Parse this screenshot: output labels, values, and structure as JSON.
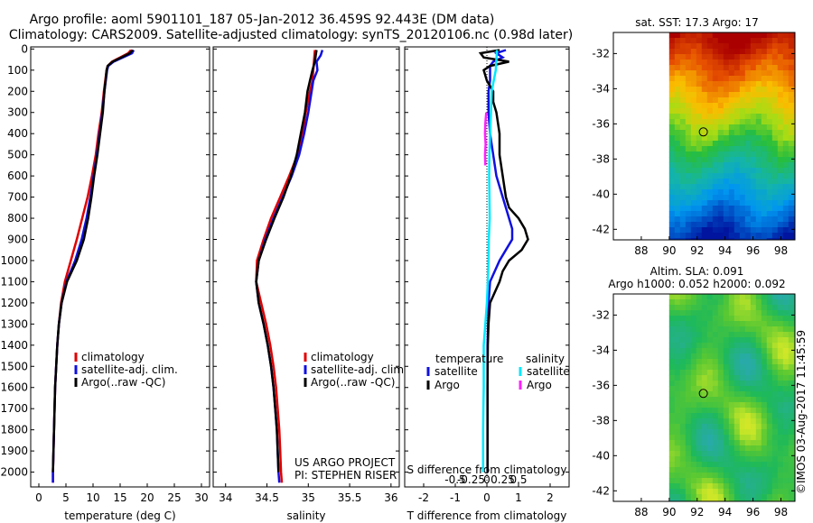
{
  "header": {
    "line1": "Argo profile: aoml 5901101_187 05-Jan-2012 36.459S 92.443E (DM data)",
    "line2": "Climatology: CARS2009. Satellite-adjusted climatology: synTS_20120106.nc (0.98d later)"
  },
  "colors": {
    "climatology": "#e00000",
    "satellite": "#1010e0",
    "argo": "#000000",
    "sat_s": "#00e8ff",
    "argo_s": "#ff20ff"
  },
  "depth_ticks": [
    0,
    100,
    200,
    300,
    400,
    500,
    600,
    700,
    800,
    900,
    1000,
    1100,
    1200,
    1300,
    1400,
    1500,
    1600,
    1700,
    1800,
    1900,
    2000
  ],
  "chart_data": [
    {
      "type": "line",
      "xlabel": "temperature (deg C)",
      "xlim": [
        -1.5,
        31.5
      ],
      "xticks": [
        "0",
        "5",
        "10",
        "15",
        "20",
        "25",
        "30"
      ],
      "xtick_values": [
        0,
        5,
        10,
        15,
        20,
        25,
        30
      ],
      "ylim": [
        2070,
        -10
      ],
      "legend": [
        "climatology",
        "satellite-adj. clim.",
        "Argo(..raw -QC)"
      ],
      "series": [
        {
          "name": "climatology",
          "color": "#e00000",
          "depth": [
            5,
            20,
            40,
            60,
            80,
            100,
            200,
            300,
            400,
            500,
            600,
            700,
            800,
            900,
            1000,
            1100,
            1200,
            1300,
            1400,
            1500,
            1600,
            1700,
            1800,
            1900,
            2000,
            2050
          ],
          "values": [
            17.0,
            16.5,
            15.0,
            13.5,
            12.7,
            12.5,
            12.0,
            11.6,
            11.0,
            10.5,
            9.8,
            9.0,
            8.0,
            7.0,
            5.9,
            4.8,
            4.1,
            3.7,
            3.4,
            3.2,
            3.0,
            2.9,
            2.8,
            2.7,
            2.6,
            2.6
          ]
        },
        {
          "name": "satellite-adj. clim.",
          "color": "#1010e0",
          "depth": [
            5,
            20,
            40,
            60,
            80,
            100,
            200,
            300,
            400,
            500,
            600,
            700,
            800,
            900,
            1000,
            1100,
            1200,
            1300,
            1400,
            1500,
            1600,
            1700,
            1800,
            1900,
            2000,
            2050
          ],
          "values": [
            17.5,
            17.2,
            15.5,
            13.8,
            12.8,
            12.6,
            12.1,
            11.7,
            11.2,
            10.7,
            10.1,
            9.5,
            8.8,
            7.9,
            6.7,
            5.1,
            4.2,
            3.7,
            3.4,
            3.2,
            3.0,
            2.9,
            2.8,
            2.7,
            2.6,
            2.6
          ]
        },
        {
          "name": "Argo(..raw -QC)",
          "color": "#000000",
          "depth": [
            5,
            20,
            40,
            60,
            80,
            100,
            200,
            300,
            400,
            500,
            600,
            700,
            800,
            900,
            1000,
            1100,
            1200,
            1300,
            1400,
            1500,
            1600,
            1700,
            1800,
            1900,
            2000
          ],
          "values": [
            17.3,
            16.8,
            15.2,
            13.6,
            12.7,
            12.5,
            12.1,
            11.8,
            11.3,
            10.8,
            10.2,
            9.7,
            9.1,
            8.3,
            7.0,
            5.2,
            4.2,
            3.7,
            3.4,
            3.2,
            3.0,
            2.9,
            2.8,
            2.7,
            2.6
          ]
        }
      ]
    },
    {
      "type": "line",
      "xlabel": "salinity",
      "xlim": [
        33.85,
        36.1
      ],
      "xticks": [
        "34",
        "34.5",
        "35",
        "35.5",
        "36"
      ],
      "xtick_values": [
        34,
        34.5,
        35,
        35.5,
        36
      ],
      "ylim": [
        2070,
        -10
      ],
      "legend": [
        "climatology",
        "satellite-adj. clim.",
        "Argo(..raw -QC)"
      ],
      "annotations": [
        "US ARGO PROJECT",
        "PI: STEPHEN RISER"
      ],
      "series": [
        {
          "name": "climatology",
          "color": "#e00000",
          "depth": [
            5,
            50,
            100,
            150,
            200,
            300,
            400,
            500,
            600,
            700,
            800,
            900,
            1000,
            1100,
            1200,
            1300,
            1400,
            1500,
            1600,
            1700,
            1800,
            1900,
            2000,
            2050
          ],
          "values": [
            35.08,
            35.07,
            35.06,
            35.05,
            35.02,
            34.97,
            34.93,
            34.87,
            34.77,
            34.66,
            34.55,
            34.46,
            34.38,
            34.37,
            34.43,
            34.49,
            34.54,
            34.58,
            34.61,
            34.63,
            34.65,
            34.66,
            34.67,
            34.68
          ]
        },
        {
          "name": "satellite-adj. clim.",
          "color": "#1010e0",
          "depth": [
            5,
            30,
            60,
            100,
            150,
            200,
            300,
            400,
            500,
            600,
            700,
            800,
            900,
            1000,
            1100,
            1200,
            1300,
            1400,
            1500,
            1600,
            1700,
            1800,
            1900,
            2000,
            2050
          ],
          "values": [
            35.17,
            35.15,
            35.1,
            35.11,
            35.06,
            35.04,
            35.0,
            34.95,
            34.89,
            34.8,
            34.69,
            34.58,
            34.48,
            34.4,
            34.37,
            34.4,
            34.46,
            34.51,
            34.55,
            34.58,
            34.6,
            34.62,
            34.63,
            34.64,
            34.65
          ]
        },
        {
          "name": "Argo(..raw -QC)",
          "color": "#000000",
          "depth": [
            5,
            30,
            60,
            100,
            150,
            200,
            300,
            400,
            500,
            600,
            700,
            800,
            900,
            1000,
            1100,
            1200,
            1300,
            1400,
            1500,
            1600,
            1700,
            1800,
            1900,
            2000
          ],
          "values": [
            35.1,
            35.09,
            35.08,
            35.05,
            35.02,
            34.99,
            34.96,
            34.91,
            34.86,
            34.79,
            34.7,
            34.59,
            34.49,
            34.4,
            34.37,
            34.4,
            34.46,
            34.51,
            34.55,
            34.58,
            34.6,
            34.62,
            34.63,
            34.64
          ]
        }
      ]
    },
    {
      "type": "line",
      "xlabel": "T difference from climatology",
      "top_label": "S difference from climatology",
      "xlim": [
        -2.6,
        2.6
      ],
      "xticks": [
        "-2",
        "-1",
        "0",
        "1",
        "2"
      ],
      "xtick_values": [
        -2,
        -1,
        0,
        1,
        2
      ],
      "sticks": [
        "-0.5",
        "-0.25",
        "0",
        "0.25",
        "0.5"
      ],
      "stick_values": [
        -1.0,
        -0.5,
        0,
        0.5,
        1.0
      ],
      "ylim": [
        2070,
        -10
      ],
      "legend_headers": [
        "temperature",
        "salinity"
      ],
      "legend": [
        "satellite",
        "Argo",
        "satellite",
        "Argo"
      ],
      "series": [
        {
          "name": "satellite",
          "group": "temperature",
          "color": "#1010e0",
          "depth": [
            5,
            20,
            40,
            60,
            80,
            100,
            150,
            200,
            300,
            400,
            500,
            600,
            700,
            800,
            850,
            900,
            950,
            1000,
            1100,
            1200,
            1400,
            1600,
            1800,
            2000
          ],
          "values": [
            0.6,
            0.3,
            0.5,
            0.2,
            0.1,
            0.1,
            0.1,
            0.05,
            0.05,
            0.1,
            0.2,
            0.3,
            0.5,
            0.7,
            0.8,
            0.8,
            0.6,
            0.4,
            0.1,
            0.05,
            0.02,
            0.02,
            0.02,
            0.02
          ]
        },
        {
          "name": "Argo",
          "group": "temperature",
          "color": "#000000",
          "depth": [
            5,
            20,
            40,
            60,
            80,
            100,
            150,
            200,
            250,
            300,
            400,
            500,
            600,
            700,
            750,
            800,
            850,
            900,
            950,
            1000,
            1050,
            1100,
            1200,
            1300,
            1400,
            1600,
            1800,
            2000
          ],
          "values": [
            0.4,
            -0.2,
            -0.1,
            0.7,
            0.1,
            -0.1,
            0.0,
            0.2,
            0.2,
            0.3,
            0.4,
            0.4,
            0.5,
            0.6,
            0.7,
            1.0,
            1.2,
            1.3,
            1.1,
            0.7,
            0.5,
            0.4,
            0.1,
            0.05,
            0.03,
            0.02,
            0.02,
            0.02
          ]
        },
        {
          "name": "satellite",
          "group": "salinity",
          "color": "#00e8ff",
          "depth": [
            5,
            50,
            100,
            200,
            300,
            400,
            500,
            600,
            700,
            800,
            900,
            1000,
            1100,
            1200,
            1300,
            1400,
            1500,
            1600,
            1700,
            1800,
            1900,
            2000
          ],
          "values": [
            0.32,
            0.3,
            0.28,
            0.15,
            0.13,
            0.1,
            0.08,
            0.07,
            0.08,
            0.09,
            0.06,
            0.05,
            0.03,
            0.0,
            -0.05,
            -0.1,
            -0.1,
            -0.1,
            -0.11,
            -0.12,
            -0.12,
            -0.12
          ]
        },
        {
          "name": "Argo",
          "group": "salinity",
          "color": "#ff20ff",
          "depth": [
            300,
            350,
            400,
            450,
            500,
            550
          ],
          "values": [
            -0.02,
            -0.05,
            -0.06,
            -0.04,
            -0.06,
            -0.05
          ]
        }
      ]
    }
  ],
  "maps": [
    {
      "title_lines": [
        "sat. SST: 17.3 Argo: 17"
      ],
      "lat_ticks": [
        "-32",
        "-34",
        "-36",
        "-38",
        "-40",
        "-42"
      ],
      "lon_ticks": [
        "88",
        "90",
        "92",
        "94",
        "96",
        "98"
      ],
      "palette": "sst",
      "point_lon": 92.443,
      "point_lat": -36.459
    },
    {
      "title_lines": [
        "Altim. SLA: 0.091",
        "Argo h1000: 0.052 h2000: 0.092"
      ],
      "lat_ticks": [
        "-32",
        "-34",
        "-36",
        "-38",
        "-40",
        "-42"
      ],
      "lon_ticks": [
        "88",
        "90",
        "92",
        "94",
        "96",
        "98"
      ],
      "palette": "sla",
      "point_lon": 92.443,
      "point_lat": -36.459
    }
  ],
  "footer": {
    "stamp": "©IMOS 03-Aug-2017 11:45:59"
  }
}
